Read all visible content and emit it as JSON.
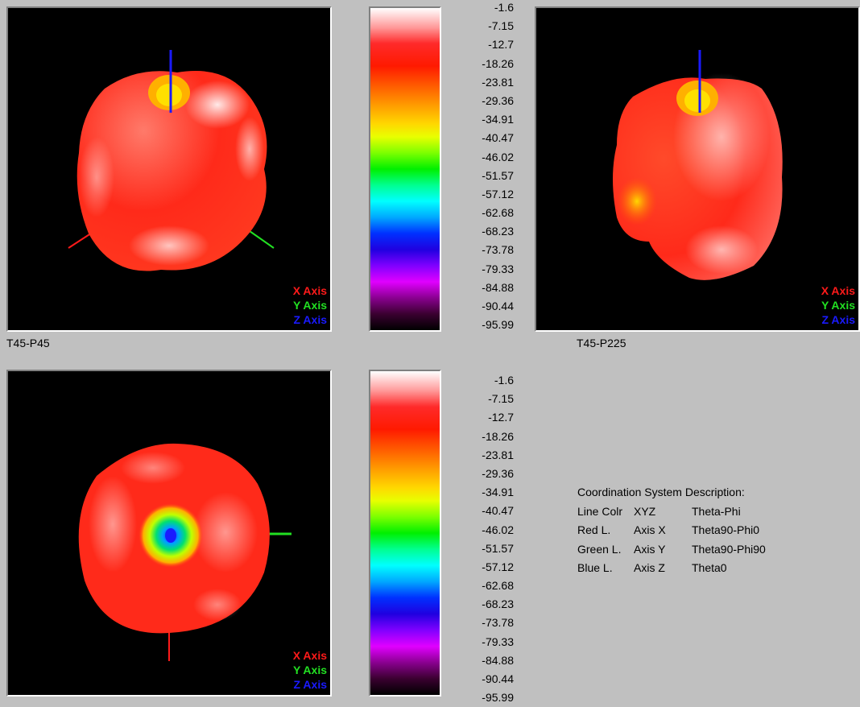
{
  "views": [
    {
      "caption": "T45-P45",
      "axis_labels": [
        "X Axis",
        "Y Axis",
        "Z Axis"
      ]
    },
    {
      "caption": "T45-P225",
      "axis_labels": [
        "X Axis",
        "Y Axis",
        "Z Axis"
      ]
    },
    {
      "caption": "",
      "axis_labels": [
        "X Axis",
        "Y Axis",
        "Z Axis"
      ]
    }
  ],
  "colorbar": {
    "ticks": [
      "-1.6",
      "-7.15",
      "-12.7",
      "-18.26",
      "-23.81",
      "-29.36",
      "-34.91",
      "-40.47",
      "-46.02",
      "-51.57",
      "-57.12",
      "-62.68",
      "-68.23",
      "-73.78",
      "-79.33",
      "-84.88",
      "-90.44",
      "-95.99"
    ]
  },
  "axis_colors": {
    "x": "#ff1a1a",
    "y": "#22e022",
    "z": "#1a1aff"
  },
  "coord_description": {
    "title": "Coordination System Description:",
    "rows": [
      [
        "Line Colr",
        "XYZ",
        "Theta-Phi"
      ],
      [
        "Red L.",
        "Axis X",
        "Theta90-Phi0"
      ],
      [
        "Green L.",
        "Axis Y",
        "Theta90-Phi90"
      ],
      [
        "Blue L.",
        "Axis Z",
        "Theta0"
      ]
    ]
  }
}
